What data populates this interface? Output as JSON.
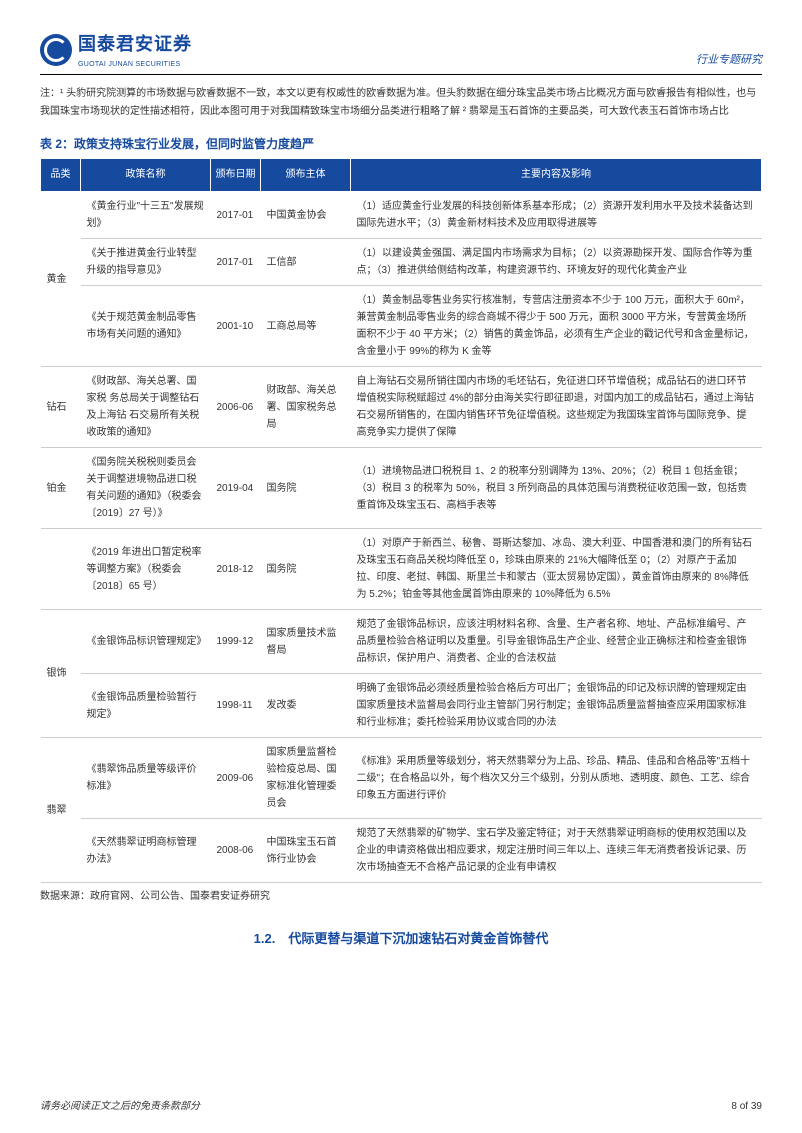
{
  "header": {
    "logo_cn": "国泰君安证券",
    "logo_en": "GUOTAI JUNAN SECURITIES",
    "right_label": "行业专题研究"
  },
  "note_text": "注：¹ 头豹研究院测算的市场数据与欧睿数据不一致，本文以更有权威性的欧睿数据为准。但头豹数据在细分珠宝品类市场占比概况方面与欧睿报告有相似性，也与我国珠宝市场现状的定性描述相符，因此本图可用于对我国精致珠宝市场细分品类进行粗略了解 ² 翡翠是玉石首饰的主要品类，可大致代表玉石首饰市场占比",
  "table": {
    "title": "表 2：政策支持珠宝行业发展，但同时监管力度趋严",
    "columns": [
      "品类",
      "政策名称",
      "颁布日期",
      "颁布主体",
      "主要内容及影响"
    ],
    "widths": [
      "40px",
      "130px",
      "50px",
      "90px",
      "auto"
    ],
    "header_bg": "#164a9e",
    "header_color": "#ffffff",
    "rows": [
      {
        "cat": "黄金",
        "rowspan": 3,
        "policy": "《黄金行业\"十三五\"发展规划》",
        "date": "2017-01",
        "body": "中国黄金协会",
        "content": "（1）适应黄金行业发展的科技创新体系基本形成；（2）资源开发利用水平及技术装备达到国际先进水平；（3）黄金新材料技术及应用取得进展等"
      },
      {
        "policy": "《关于推进黄金行业转型升级的指导意见》",
        "date": "2017-01",
        "body": "工信部",
        "content": "（1）以建设黄金强国、满足国内市场需求为目标；（2）以资源勘探开发、国际合作等为重点；（3）推进供给侧结构改革，构建资源节约、环境友好的现代化黄金产业"
      },
      {
        "policy": "《关于规范黄金制品零售市场有关问题的通知》",
        "date": "2001-10",
        "body": "工商总局等",
        "content": "（1）黄金制品零售业务实行核准制，专营店注册资本不少于 100 万元，面积大于 60m²，兼营黄金制品零售业务的综合商城不得少于 500 万元，面积 3000 平方米，专营黄金场所面积不少于 40 平方米；（2）销售的黄金饰品，必须有生产企业的戳记代号和含金量标记，含金量小于 99%的称为 K 金等"
      },
      {
        "cat": "钻石",
        "rowspan": 1,
        "policy": "《财政部、海关总署、国家税 务总局关于调整钻石及上海钻 石交易所有关税收政策的通知》",
        "date": "2006-06",
        "body": "财政部、海关总署、国家税务总局",
        "content": "自上海钻石交易所销往国内市场的毛坯钻石，免征进口环节增值税；成品钻石的进口环节增值税实际税赋超过 4%的部分由海关实行即征即退，对国内加工的成品钻石，通过上海钻石交易所销售的，在国内销售环节免征增值税。这些规定为我国珠宝首饰与国际竞争、提高竞争实力提供了保障"
      },
      {
        "cat": "铂金",
        "rowspan": 1,
        "policy": "《国务院关税税则委员会关于调整进境物品进口税有关问题的通知》（税委会〔2019〕27 号）》",
        "date": "2019-04",
        "body": "国务院",
        "content": "（1）进境物品进口税税目 1、2 的税率分别调降为 13%、20%；（2）税目 1 包括金银；（3）税目 3 的税率为 50%，税目 3 所列商品的具体范围与消费税征收范围一致，包括贵重首饰及珠宝玉石、高档手表等"
      },
      {
        "cat": "",
        "rowspan": 1,
        "policy": "《2019 年进出口暂定税率等调整方案》（税委会〔2018〕65 号）",
        "date": "2018-12",
        "body": "国务院",
        "content": "（1）对原产于新西兰、秘鲁、哥斯达黎加、冰岛、澳大利亚、中国香港和澳门的所有钻石及珠宝玉石商品关税均降低至 0，珍珠由原来的 21%大幅降低至 0；（2）对原产于孟加拉、印度、老挝、韩国、斯里兰卡和蒙古（亚太贸易协定国），黄金首饰由原来的 8%降低为 5.2%；铂金等其他金属首饰由原来的 10%降低为 6.5%"
      },
      {
        "cat": "银饰",
        "rowspan": 2,
        "policy": "《金银饰品标识管理规定》",
        "date": "1999-12",
        "body": "国家质量技术监督局",
        "content": "规范了金银饰品标识，应该注明材料名称、含量、生产者名称、地址、产品标准编号、产品质量检验合格证明以及重量。引导金银饰品生产企业、经营企业正确标注和检查金银饰品标识，保护用户、消费者、企业的合法权益"
      },
      {
        "policy": "《金银饰品质量检验暂行规定》",
        "date": "1998-11",
        "body": "发改委",
        "content": "明确了金银饰品必须经质量检验合格后方可出厂；金银饰品的印记及标识牌的管理规定由国家质量技术监督局会同行业主管部门另行制定；金银饰品质量监督抽查应采用国家标准和行业标准；委托检验采用协议或合同的办法"
      },
      {
        "cat": "翡翠",
        "rowspan": 2,
        "policy": "《翡翠饰品质量等级评价标准》",
        "date": "2009-06",
        "body": "国家质量监督检验检疫总局、国家标准化管理委员会",
        "content": "《标准》采用质量等级划分，将天然翡翠分为上品、珍品、精品、佳品和合格品等\"五档十二级\"；在合格品以外，每个档次又分三个级别，分别从质地、透明度、颜色、工艺、综合印象五方面进行评价"
      },
      {
        "policy": "《天然翡翠证明商标管理办法》",
        "date": "2008-06",
        "body": "中国珠宝玉石首饰行业协会",
        "content": "规范了天然翡翠的矿物学、宝石学及鉴定特征；对于天然翡翠证明商标的使用权范围以及企业的申请资格做出相应要求，规定注册时间三年以上、连续三年无消费者投诉记录、历次市场抽查无不合格产品记录的企业有申请权"
      }
    ]
  },
  "source": "数据来源：政府官网、公司公告、国泰君安证券研究",
  "section_title": "1.2.　代际更替与渠道下沉加速钻石对黄金首饰替代",
  "footer": {
    "left": "请务必阅读正文之后的免责条款部分",
    "right": "8 of 39"
  },
  "colors": {
    "brand": "#164a9e",
    "text": "#333333",
    "border": "#cccccc",
    "background": "#ffffff"
  }
}
